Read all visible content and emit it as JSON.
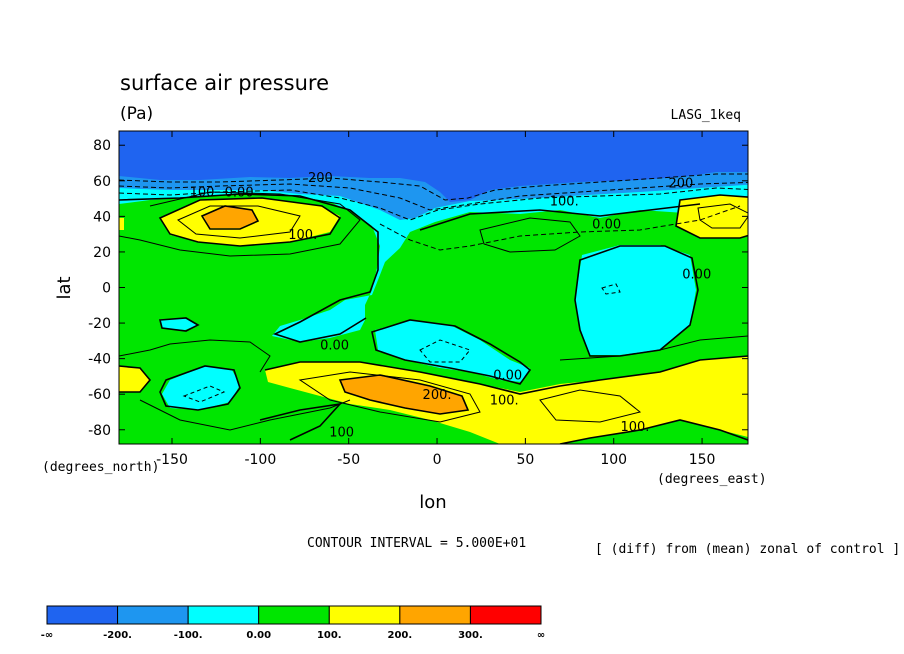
{
  "chart_data": {
    "type": "heatmap",
    "title": "surface air pressure",
    "units": "(Pa)",
    "dataset": "LASG_1keq",
    "xlabel": "lon",
    "ylabel": "lat",
    "x_units": "(degrees_east)",
    "y_units": "(degrees_north)",
    "xlim": [
      -180,
      176
    ],
    "ylim": [
      -88,
      88
    ],
    "x_ticks": [
      -150,
      -100,
      -50,
      0,
      50,
      100,
      150
    ],
    "y_ticks": [
      80,
      60,
      40,
      20,
      0,
      -20,
      -40,
      -60,
      -80
    ],
    "contour_interval_text": "CONTOUR INTERVAL = 5.000E+01",
    "note": "[ (diff) from (mean) zonal of control ]",
    "levels": [
      -200,
      -100,
      0,
      100,
      200,
      300
    ],
    "level_labels": [
      "-∞",
      "-200.",
      "-100.",
      "0.00",
      "100.",
      "200.",
      "300.",
      "∞"
    ],
    "colors": [
      "#1f64f0",
      "#1e96f0",
      "#00ffff",
      "#00e600",
      "#ffff00",
      "#ffa500",
      "#ff0000"
    ],
    "contour_labels": [
      {
        "text": "200",
        "lon": -66,
        "lat": 62
      },
      {
        "text": "100",
        "lon": -133,
        "lat": 54
      },
      {
        "text": "0.00",
        "lon": -112,
        "lat": 54
      },
      {
        "text": "100.",
        "lon": -76,
        "lat": 30
      },
      {
        "text": "100.",
        "lon": 72,
        "lat": 49
      },
      {
        "text": "0.00",
        "lon": 96,
        "lat": 36
      },
      {
        "text": "200",
        "lon": 138,
        "lat": 59
      },
      {
        "text": "0.00",
        "lon": 147,
        "lat": 8
      },
      {
        "text": "0.00",
        "lon": -58,
        "lat": -32
      },
      {
        "text": "0.00",
        "lon": 40,
        "lat": -49
      },
      {
        "text": "100.",
        "lon": 38,
        "lat": -63
      },
      {
        "text": "200.",
        "lon": 0,
        "lat": -60
      },
      {
        "text": "100",
        "lon": -54,
        "lat": -81
      },
      {
        "text": "100.",
        "lon": 112,
        "lat": -78
      }
    ]
  }
}
